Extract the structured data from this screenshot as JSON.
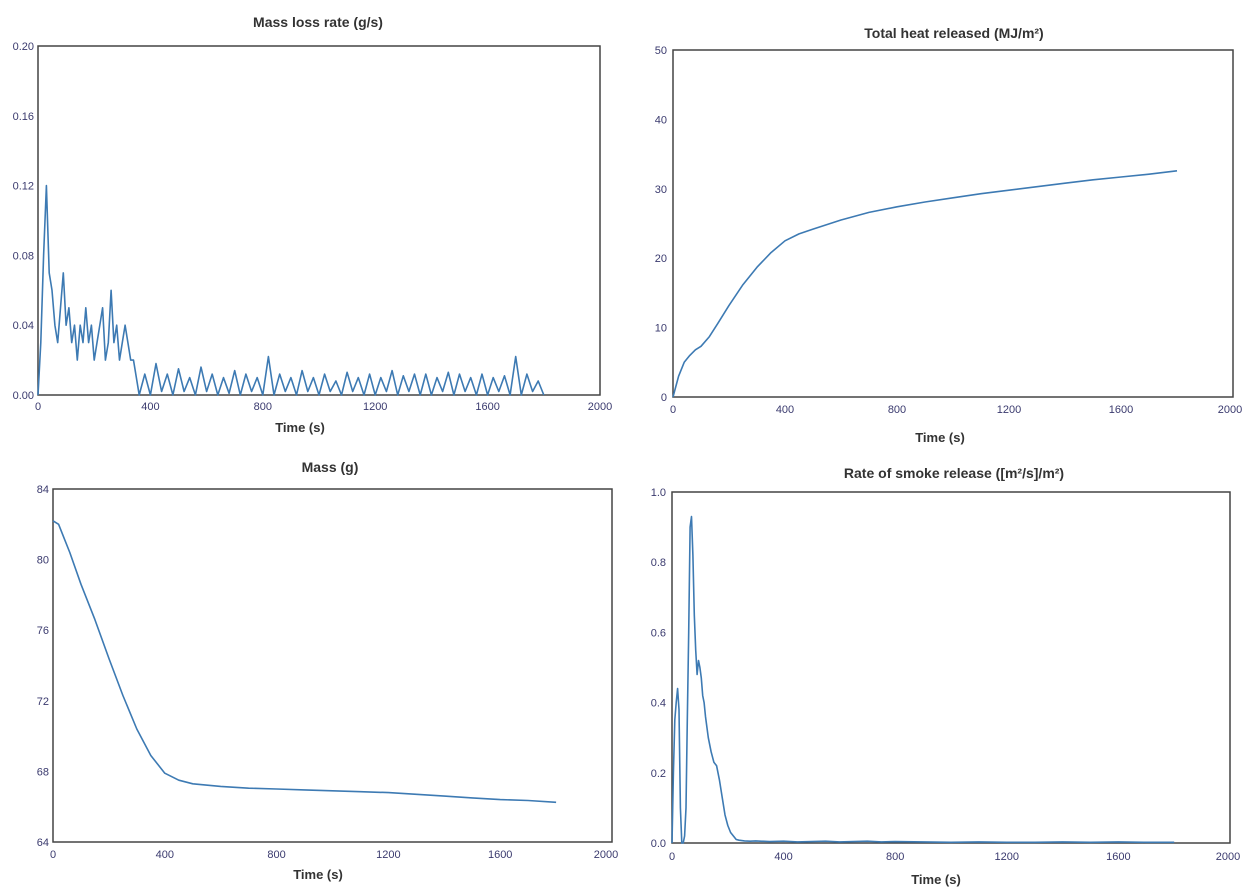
{
  "colors": {
    "series": "#3d7ab3",
    "frame": "#444444",
    "text": "#333333"
  },
  "chart_data": [
    {
      "type": "line",
      "title": "Mass loss rate (g/s)",
      "xlabel": "Time (s)",
      "ylabel": "",
      "xlim": [
        0,
        2000
      ],
      "ylim": [
        0,
        0.2
      ],
      "xticks": [
        "0",
        "400",
        "800",
        "1200",
        "1600",
        "2000"
      ],
      "yticks": [
        "0.00",
        "0.04",
        "0.08",
        "0.12",
        "0.16",
        "0.20"
      ],
      "grid": false,
      "series": [
        {
          "x": [
            0,
            10,
            20,
            30,
            40,
            50,
            60,
            70,
            80,
            90,
            100,
            110,
            120,
            130,
            140,
            150,
            160,
            170,
            180,
            190,
            200,
            210,
            220,
            230,
            240,
            250,
            260,
            270,
            280,
            290,
            300,
            310,
            320,
            330,
            340,
            360,
            380,
            400,
            420,
            440,
            460,
            480,
            500,
            520,
            540,
            560,
            580,
            600,
            620,
            640,
            660,
            680,
            700,
            720,
            740,
            760,
            780,
            800,
            820,
            840,
            860,
            880,
            900,
            920,
            940,
            960,
            980,
            1000,
            1020,
            1040,
            1060,
            1080,
            1100,
            1120,
            1140,
            1160,
            1180,
            1200,
            1220,
            1240,
            1260,
            1280,
            1300,
            1320,
            1340,
            1360,
            1380,
            1400,
            1420,
            1440,
            1460,
            1480,
            1500,
            1520,
            1540,
            1560,
            1580,
            1600,
            1620,
            1640,
            1660,
            1680,
            1700,
            1720,
            1740,
            1760,
            1780,
            1800
          ],
          "values": [
            0.0,
            0.03,
            0.08,
            0.12,
            0.07,
            0.06,
            0.04,
            0.03,
            0.05,
            0.07,
            0.04,
            0.05,
            0.03,
            0.04,
            0.02,
            0.04,
            0.03,
            0.05,
            0.03,
            0.04,
            0.02,
            0.03,
            0.04,
            0.05,
            0.02,
            0.03,
            0.06,
            0.03,
            0.04,
            0.02,
            0.03,
            0.04,
            0.03,
            0.02,
            0.02,
            0.0,
            0.012,
            0.0,
            0.018,
            0.002,
            0.012,
            0.0,
            0.015,
            0.002,
            0.01,
            0.0,
            0.016,
            0.002,
            0.012,
            0.0,
            0.01,
            0.001,
            0.014,
            0.0,
            0.012,
            0.002,
            0.01,
            0.0,
            0.022,
            0.0,
            0.012,
            0.002,
            0.01,
            0.0,
            0.014,
            0.002,
            0.01,
            0.0,
            0.012,
            0.002,
            0.008,
            0.0,
            0.013,
            0.002,
            0.01,
            0.0,
            0.012,
            0.0,
            0.01,
            0.002,
            0.014,
            0.0,
            0.011,
            0.002,
            0.012,
            0.0,
            0.012,
            0.0,
            0.01,
            0.002,
            0.013,
            0.0,
            0.012,
            0.002,
            0.01,
            0.0,
            0.012,
            0.0,
            0.01,
            0.002,
            0.011,
            0.0,
            0.022,
            0.0,
            0.012,
            0.002,
            0.008,
            0.0
          ]
        }
      ]
    },
    {
      "type": "line",
      "title": "Total heat released (MJ/m²)",
      "xlabel": "Time (s)",
      "ylabel": "",
      "xlim": [
        0,
        2000
      ],
      "ylim": [
        0,
        50
      ],
      "xticks": [
        "0",
        "400",
        "800",
        "1200",
        "1600",
        "2000"
      ],
      "yticks": [
        "0",
        "10",
        "20",
        "30",
        "40",
        "50"
      ],
      "grid": false,
      "series": [
        {
          "x": [
            0,
            20,
            40,
            60,
            80,
            100,
            130,
            160,
            200,
            250,
            300,
            350,
            400,
            450,
            500,
            600,
            700,
            800,
            900,
            1000,
            1100,
            1200,
            1300,
            1400,
            1500,
            1600,
            1700,
            1800
          ],
          "values": [
            0,
            3,
            5,
            6,
            6.8,
            7.3,
            8.7,
            10.6,
            13.2,
            16.2,
            18.7,
            20.8,
            22.5,
            23.5,
            24.2,
            25.5,
            26.6,
            27.4,
            28.1,
            28.7,
            29.3,
            29.8,
            30.3,
            30.8,
            31.3,
            31.7,
            32.1,
            32.6
          ]
        }
      ]
    },
    {
      "type": "line",
      "title": "Mass (g)",
      "xlabel": "Time (s)",
      "ylabel": "",
      "xlim": [
        0,
        2000
      ],
      "ylim": [
        64,
        84
      ],
      "xticks": [
        "0",
        "400",
        "800",
        "1200",
        "1600",
        "2000"
      ],
      "yticks": [
        "64",
        "68",
        "72",
        "76",
        "80",
        "84"
      ],
      "grid": false,
      "series": [
        {
          "x": [
            0,
            20,
            40,
            60,
            100,
            150,
            200,
            250,
            300,
            350,
            400,
            450,
            500,
            600,
            700,
            800,
            900,
            1000,
            1100,
            1200,
            1300,
            1400,
            1500,
            1600,
            1700,
            1800
          ],
          "values": [
            82.2,
            82.0,
            81.2,
            80.4,
            78.6,
            76.6,
            74.4,
            72.3,
            70.4,
            68.9,
            67.9,
            67.5,
            67.3,
            67.15,
            67.05,
            67.0,
            66.95,
            66.9,
            66.85,
            66.8,
            66.7,
            66.6,
            66.5,
            66.4,
            66.35,
            66.25
          ]
        }
      ]
    },
    {
      "type": "line",
      "title": "Rate of smoke release ([m²/s]/m²)",
      "xlabel": "Time (s)",
      "ylabel": "",
      "xlim": [
        0,
        2000
      ],
      "ylim": [
        0,
        1.0
      ],
      "xticks": [
        "0",
        "400",
        "800",
        "1200",
        "1600",
        "2000"
      ],
      "yticks": [
        "0.0",
        "0.2",
        "0.4",
        "0.6",
        "0.8",
        "1.0"
      ],
      "grid": false,
      "series": [
        {
          "x": [
            0,
            5,
            10,
            15,
            20,
            25,
            30,
            35,
            40,
            45,
            50,
            55,
            60,
            65,
            70,
            75,
            80,
            85,
            90,
            95,
            100,
            105,
            110,
            115,
            120,
            130,
            140,
            150,
            160,
            170,
            180,
            190,
            200,
            210,
            220,
            230,
            240,
            260,
            280,
            300,
            350,
            400,
            450,
            500,
            550,
            600,
            650,
            700,
            750,
            800,
            900,
            1000,
            1100,
            1200,
            1300,
            1400,
            1500,
            1600,
            1700,
            1800
          ],
          "values": [
            0.0,
            0.2,
            0.35,
            0.4,
            0.44,
            0.38,
            0.1,
            0.0,
            0.0,
            0.02,
            0.1,
            0.35,
            0.6,
            0.9,
            0.93,
            0.82,
            0.65,
            0.55,
            0.48,
            0.52,
            0.5,
            0.47,
            0.42,
            0.4,
            0.36,
            0.3,
            0.26,
            0.23,
            0.22,
            0.18,
            0.13,
            0.08,
            0.05,
            0.03,
            0.02,
            0.01,
            0.008,
            0.006,
            0.005,
            0.006,
            0.004,
            0.005,
            0.003,
            0.004,
            0.005,
            0.003,
            0.004,
            0.005,
            0.003,
            0.004,
            0.003,
            0.002,
            0.003,
            0.002,
            0.002,
            0.003,
            0.002,
            0.003,
            0.002,
            0.002
          ]
        }
      ]
    }
  ]
}
